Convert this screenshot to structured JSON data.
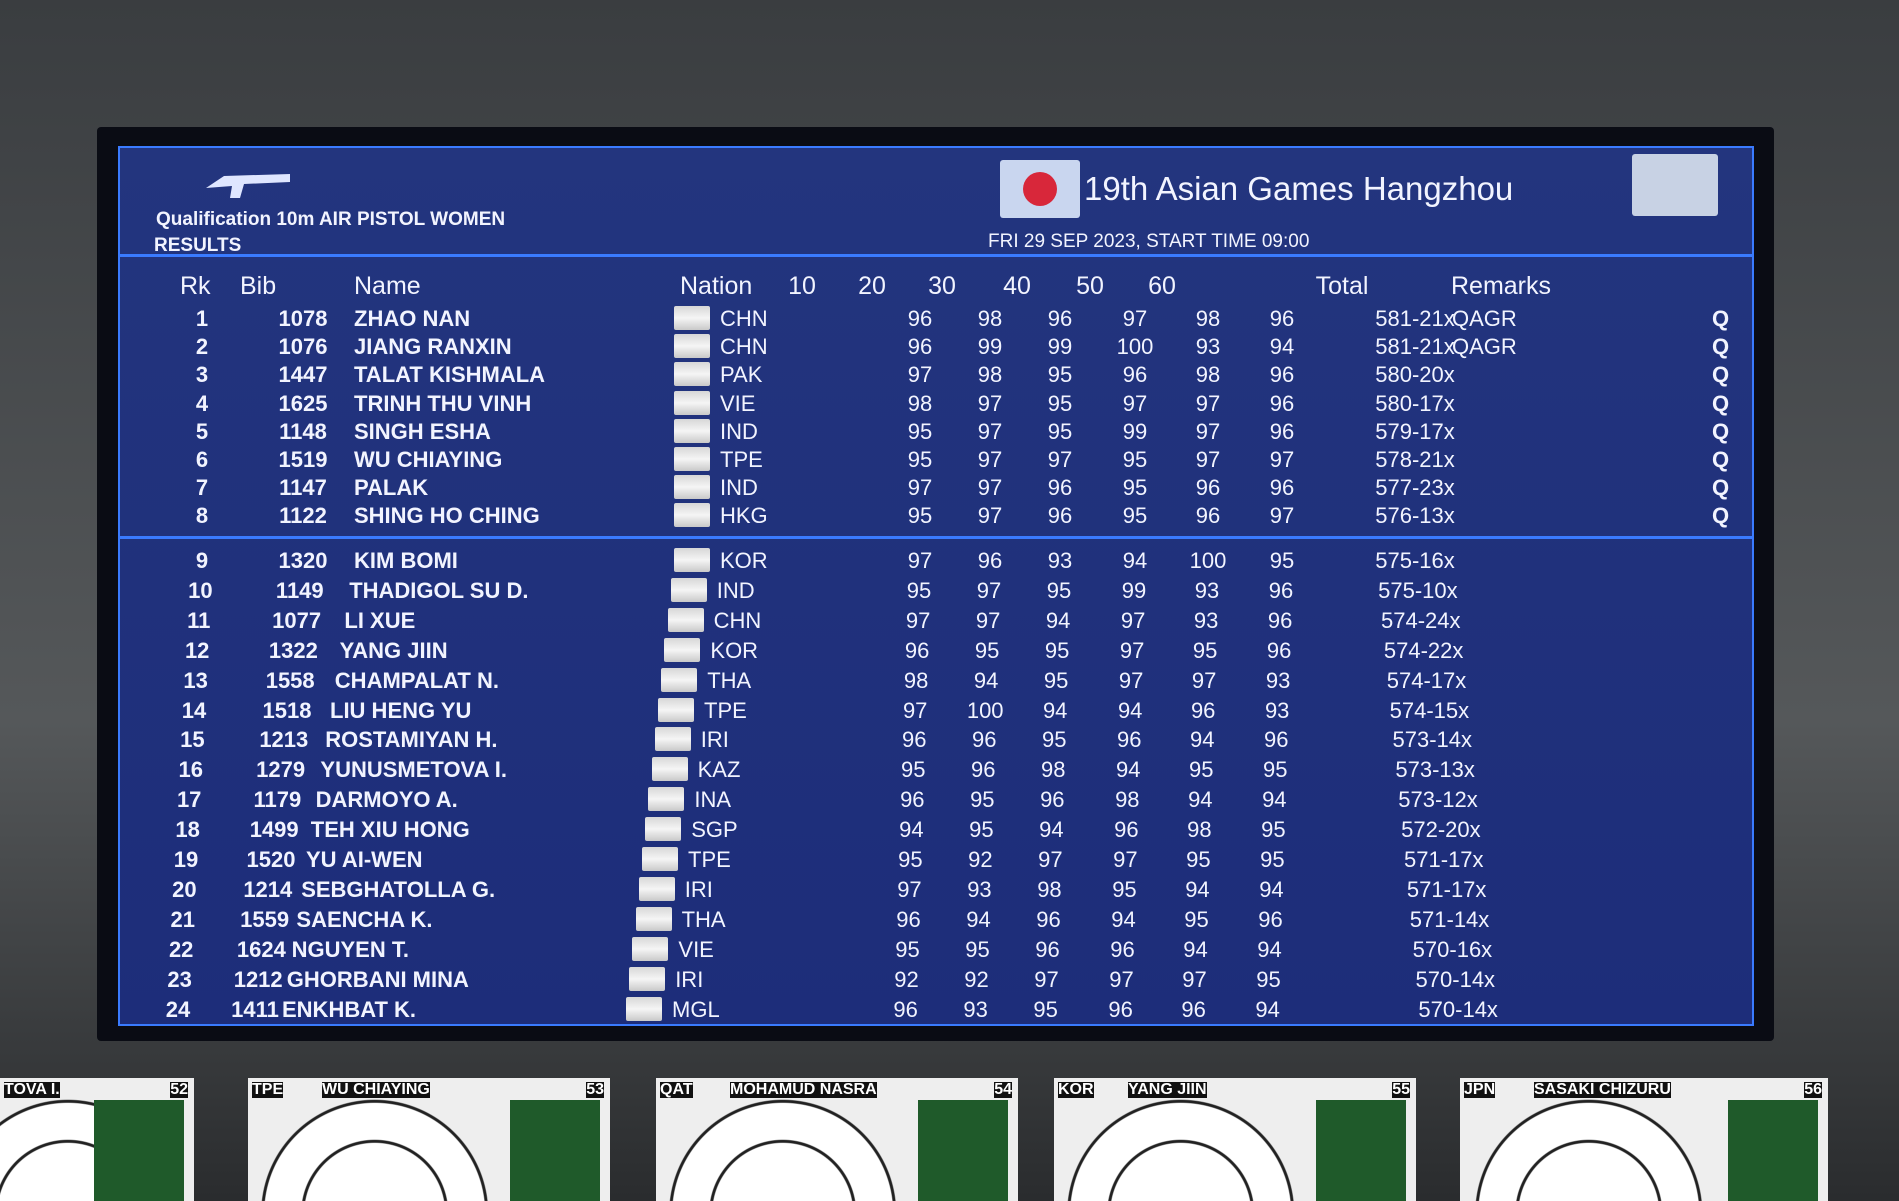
{
  "header": {
    "event": "Qualification 10m AIR PISTOL WOMEN",
    "phase": "RESULTS",
    "games": "19th Asian Games Hangzhou",
    "date": "FRI 29 SEP 2023, START TIME 09:00"
  },
  "columns": [
    "Rk",
    "Bib",
    "Name",
    "Nation",
    "10",
    "20",
    "30",
    "40",
    "50",
    "60",
    "Total",
    "Remarks"
  ],
  "rows": [
    {
      "rk": 1,
      "bib": 1078,
      "name": "ZHAO NAN",
      "nation": "CHN",
      "series": [
        96,
        98,
        96,
        97,
        98,
        96
      ],
      "total": "581-21x",
      "remarks": "QAGR",
      "q": "Q"
    },
    {
      "rk": 2,
      "bib": 1076,
      "name": "JIANG RANXIN",
      "nation": "CHN",
      "series": [
        96,
        99,
        99,
        100,
        93,
        94
      ],
      "total": "581-21x",
      "remarks": "QAGR",
      "q": "Q"
    },
    {
      "rk": 3,
      "bib": 1447,
      "name": "TALAT KISHMALA",
      "nation": "PAK",
      "series": [
        97,
        98,
        95,
        96,
        98,
        96
      ],
      "total": "580-20x",
      "q": "Q"
    },
    {
      "rk": 4,
      "bib": 1625,
      "name": "TRINH THU VINH",
      "nation": "VIE",
      "series": [
        98,
        97,
        95,
        97,
        97,
        96
      ],
      "total": "580-17x",
      "q": "Q"
    },
    {
      "rk": 5,
      "bib": 1148,
      "name": "SINGH ESHA",
      "nation": "IND",
      "series": [
        95,
        97,
        95,
        99,
        97,
        96
      ],
      "total": "579-17x",
      "q": "Q"
    },
    {
      "rk": 6,
      "bib": 1519,
      "name": "WU CHIAYING",
      "nation": "TPE",
      "series": [
        95,
        97,
        97,
        95,
        97,
        97
      ],
      "total": "578-21x",
      "q": "Q"
    },
    {
      "rk": 7,
      "bib": 1147,
      "name": "PALAK",
      "nation": "IND",
      "series": [
        97,
        97,
        96,
        95,
        96,
        96
      ],
      "total": "577-23x",
      "q": "Q"
    },
    {
      "rk": 8,
      "bib": 1122,
      "name": "SHING HO CHING",
      "nation": "HKG",
      "series": [
        95,
        97,
        96,
        95,
        96,
        97
      ],
      "total": "576-13x",
      "q": "Q"
    },
    {
      "rk": 9,
      "bib": 1320,
      "name": "KIM BOMI",
      "nation": "KOR",
      "series": [
        97,
        96,
        93,
        94,
        100,
        95
      ],
      "total": "575-16x"
    },
    {
      "rk": 10,
      "bib": 1149,
      "name": "THADIGOL SU D.",
      "nation": "IND",
      "series": [
        95,
        97,
        95,
        99,
        93,
        96
      ],
      "total": "575-10x"
    },
    {
      "rk": 11,
      "bib": 1077,
      "name": "LI XUE",
      "nation": "CHN",
      "series": [
        97,
        97,
        94,
        97,
        93,
        96
      ],
      "total": "574-24x"
    },
    {
      "rk": 12,
      "bib": 1322,
      "name": "YANG JIIN",
      "nation": "KOR",
      "series": [
        96,
        95,
        95,
        97,
        95,
        96
      ],
      "total": "574-22x"
    },
    {
      "rk": 13,
      "bib": 1558,
      "name": "CHAMPALAT N.",
      "nation": "THA",
      "series": [
        98,
        94,
        95,
        97,
        97,
        93
      ],
      "total": "574-17x"
    },
    {
      "rk": 14,
      "bib": 1518,
      "name": "LIU HENG YU",
      "nation": "TPE",
      "series": [
        97,
        100,
        94,
        94,
        96,
        93
      ],
      "total": "574-15x"
    },
    {
      "rk": 15,
      "bib": 1213,
      "name": "ROSTAMIYAN H.",
      "nation": "IRI",
      "series": [
        96,
        96,
        95,
        96,
        94,
        96
      ],
      "total": "573-14x"
    },
    {
      "rk": 16,
      "bib": 1279,
      "name": "YUNUSMETOVA I.",
      "nation": "KAZ",
      "series": [
        95,
        96,
        98,
        94,
        95,
        95
      ],
      "total": "573-13x"
    },
    {
      "rk": 17,
      "bib": 1179,
      "name": "DARMOYO A.",
      "nation": "INA",
      "series": [
        96,
        95,
        96,
        98,
        94,
        94
      ],
      "total": "573-12x"
    },
    {
      "rk": 18,
      "bib": 1499,
      "name": "TEH XIU HONG",
      "nation": "SGP",
      "series": [
        94,
        95,
        94,
        96,
        98,
        95
      ],
      "total": "572-20x"
    },
    {
      "rk": 19,
      "bib": 1520,
      "name": "YU AI-WEN",
      "nation": "TPE",
      "series": [
        95,
        92,
        97,
        97,
        95,
        95
      ],
      "total": "571-17x"
    },
    {
      "rk": 20,
      "bib": 1214,
      "name": "SEBGHATOLLA G.",
      "nation": "IRI",
      "series": [
        97,
        93,
        98,
        95,
        94,
        94
      ],
      "total": "571-17x"
    },
    {
      "rk": 21,
      "bib": 1559,
      "name": "SAENCHA K.",
      "nation": "THA",
      "series": [
        96,
        94,
        96,
        94,
        95,
        96
      ],
      "total": "571-14x"
    },
    {
      "rk": 22,
      "bib": 1624,
      "name": "NGUYEN T.",
      "nation": "VIE",
      "series": [
        95,
        95,
        96,
        96,
        94,
        94
      ],
      "total": "570-16x"
    },
    {
      "rk": 23,
      "bib": 1212,
      "name": "GHORBANI MINA",
      "nation": "IRI",
      "series": [
        92,
        92,
        97,
        97,
        97,
        95
      ],
      "total": "570-14x"
    },
    {
      "rk": 24,
      "bib": 1411,
      "name": "ENKHBAT K.",
      "nation": "MGL",
      "series": [
        96,
        93,
        95,
        96,
        96,
        94
      ],
      "total": "570-14x"
    }
  ],
  "monitors": [
    {
      "name": "TOVA I.",
      "lane": 52
    },
    {
      "country": "TPE",
      "name": "WU CHIAYING",
      "lane": 53
    },
    {
      "country": "QAT",
      "name": "MOHAMUD NASRA",
      "lane": 54
    },
    {
      "country": "KOR",
      "name": "YANG JIIN",
      "lane": 55
    },
    {
      "country": "JPN",
      "name": "SASAKI CHIZURU",
      "lane": 56
    }
  ]
}
